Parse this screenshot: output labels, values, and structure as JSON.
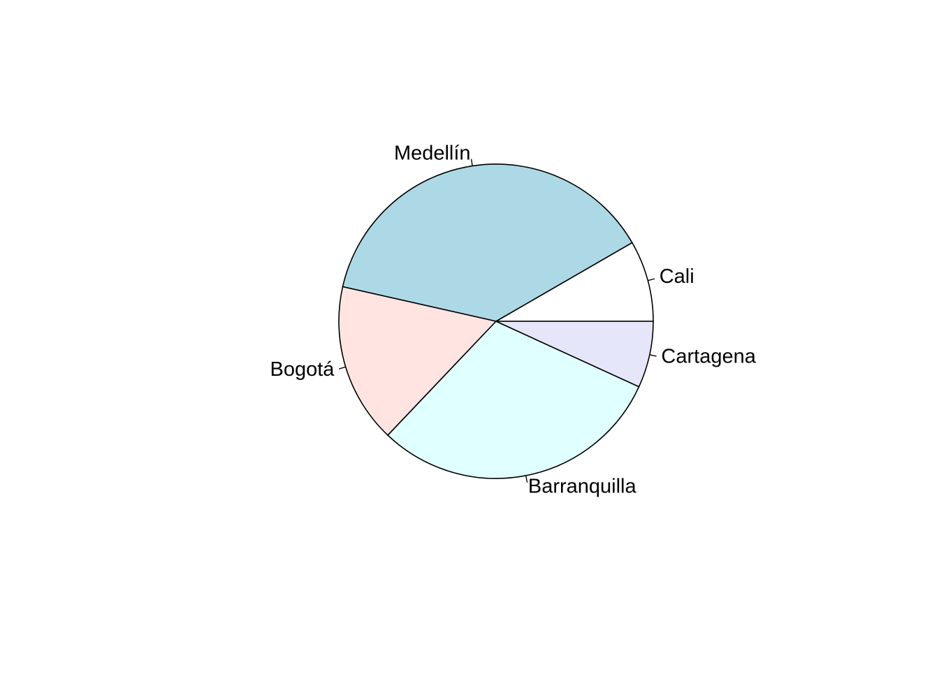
{
  "chart_data": {
    "type": "pie",
    "title": "",
    "start_angle_deg": 0,
    "direction": "counterclockwise",
    "labels": [
      "Cali",
      "Medellín",
      "Bogotá",
      "Barranquilla",
      "Cartagena"
    ],
    "values": [
      8.34,
      38.13,
      16.44,
      30.25,
      6.84
    ],
    "colors": [
      "#FFFFFF",
      "#ADD8E6",
      "#FFE4E1",
      "#E0FFFF",
      "#E6E6FA"
    ],
    "border_color": "#000000"
  }
}
